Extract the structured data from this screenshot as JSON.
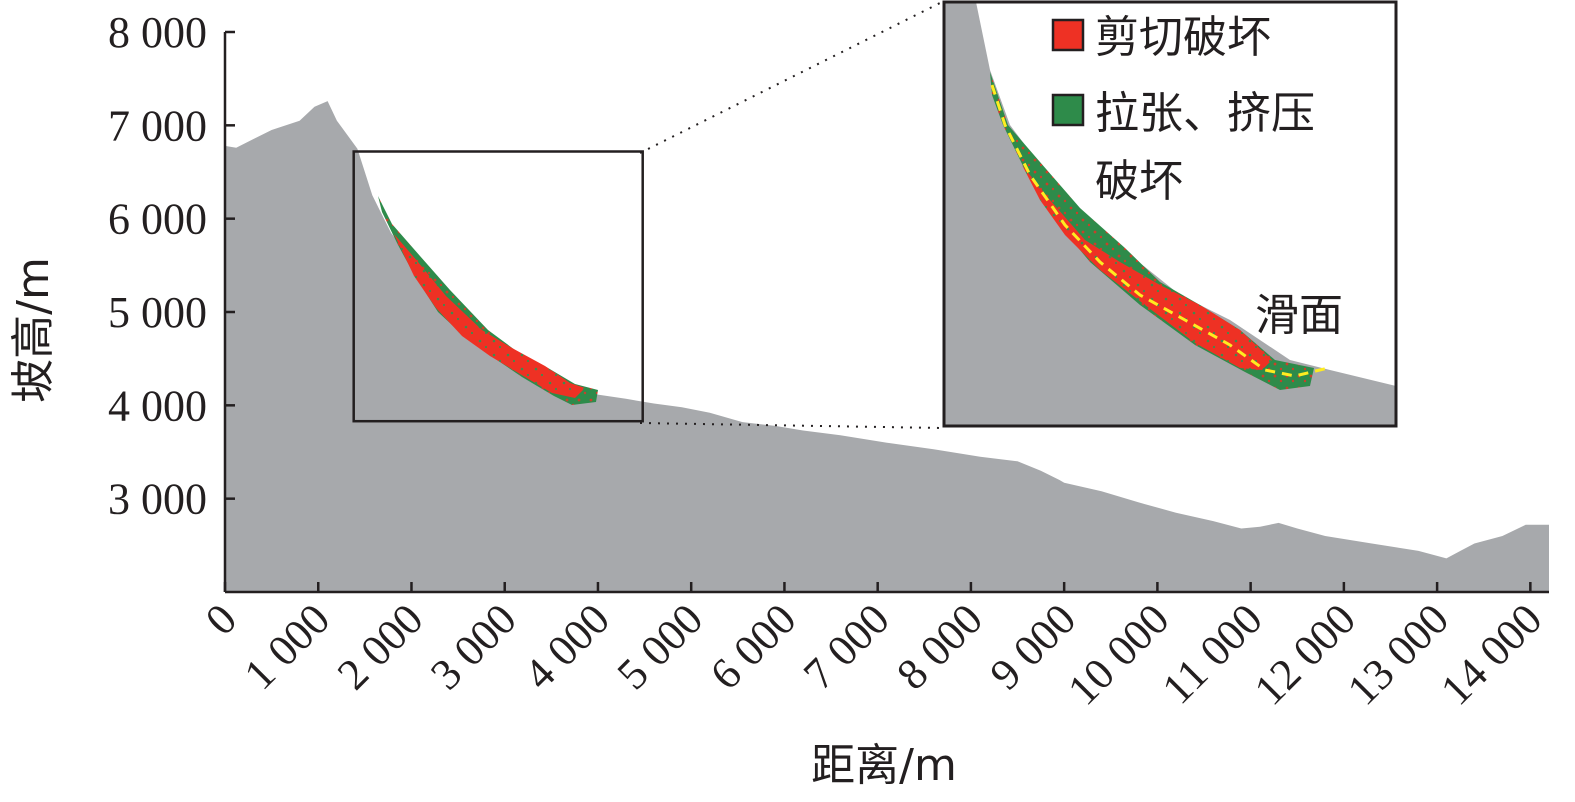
{
  "chart_data": {
    "type": "area",
    "xlabel": "距离/m",
    "ylabel": "坡高/m",
    "xlim": [
      0,
      14200
    ],
    "ylim": [
      2000,
      8000
    ],
    "x_ticks": [
      "0",
      "1 000",
      "2 000",
      "3 000",
      "4 000",
      "5 000",
      "6 000",
      "7 000",
      "8 000",
      "9 000",
      "10 000",
      "11 000",
      "12 000",
      "13 000",
      "14 000"
    ],
    "x_tick_values": [
      0,
      1000,
      2000,
      3000,
      4000,
      5000,
      6000,
      7000,
      8000,
      9000,
      10000,
      11000,
      12000,
      13000,
      14000
    ],
    "y_ticks": [
      "3 000",
      "4 000",
      "5 000",
      "6 000",
      "7 000",
      "8 000"
    ],
    "y_tick_values": [
      3000,
      4000,
      5000,
      6000,
      7000,
      8000
    ],
    "terrain": {
      "color": "#a7a9ac",
      "x": [
        0,
        120,
        300,
        500,
        800,
        960,
        1100,
        1200,
        1420,
        1580,
        1780,
        2200,
        2500,
        3000,
        3300,
        3600,
        3900,
        4300,
        4600,
        4900,
        5200,
        5550,
        5900,
        6200,
        6600,
        7100,
        7600,
        8100,
        8500,
        8750,
        8950,
        9000,
        9400,
        9800,
        10200,
        10600,
        10900,
        11100,
        11300,
        11500,
        11800,
        12300,
        12800,
        13100,
        13250,
        13400,
        13700,
        13950,
        14200
      ],
      "y": [
        6780,
        6760,
        6850,
        6950,
        7050,
        7200,
        7260,
        7050,
        6750,
        6250,
        5850,
        5280,
        4920,
        4620,
        4420,
        4220,
        4130,
        4070,
        4020,
        3980,
        3920,
        3820,
        3780,
        3730,
        3680,
        3600,
        3530,
        3450,
        3400,
        3300,
        3200,
        3170,
        3080,
        2960,
        2850,
        2760,
        2680,
        2700,
        2740,
        2680,
        2600,
        2520,
        2440,
        2360,
        2440,
        2520,
        2600,
        2720,
        2720
      ]
    },
    "failure_zones": [
      {
        "name": "剪切破坏",
        "color": "#ee3124"
      },
      {
        "name": "拉张、挤压破坏",
        "color": "#2e8b4a"
      }
    ],
    "zoom_region": {
      "x": [
        1380,
        4480
      ],
      "y": [
        3830,
        6720
      ]
    },
    "annotation": "滑面",
    "slip_surface_color": "#ffec20",
    "legend_position": "top-right",
    "grid": false
  }
}
